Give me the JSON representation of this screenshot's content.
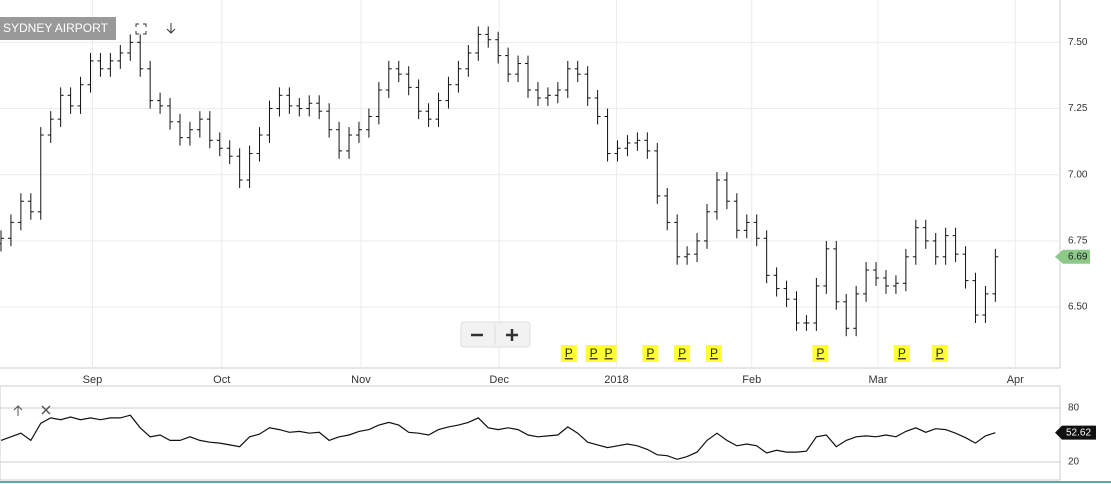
{
  "chart_data": [
    {
      "type": "ohlc",
      "title": "SYDNEY AIRPORT",
      "xlim": [
        -0.1,
        106.5
      ],
      "xticks": [
        {
          "value": 9.2,
          "label": "Sep"
        },
        {
          "value": 22.2,
          "label": "Oct"
        },
        {
          "value": 36.2,
          "label": "Nov"
        },
        {
          "value": 50.1,
          "label": "Dec"
        },
        {
          "value": 61.9,
          "label": "2018"
        },
        {
          "value": 75.5,
          "label": "Feb"
        },
        {
          "value": 88.2,
          "label": "Mar"
        },
        {
          "value": 102,
          "label": "Apr"
        }
      ],
      "ylim": [
        6.27,
        7.66
      ],
      "yticks": [
        {
          "value": 6.5,
          "label": "6.50"
        },
        {
          "value": 6.75,
          "label": "6.75"
        },
        {
          "value": 7,
          "label": "7.00"
        },
        {
          "value": 7.25,
          "label": "7.25"
        },
        {
          "value": 7.5,
          "label": "7.50"
        }
      ],
      "grid": true,
      "color": "#111111",
      "last_color": "#8cc888",
      "open": [
        6.74,
        6.76,
        6.82,
        6.9,
        6.86,
        7.15,
        7.21,
        7.3,
        7.26,
        7.34,
        7.43,
        7.4,
        7.43,
        7.46,
        7.5,
        7.4,
        7.28,
        7.26,
        7.2,
        7.14,
        7.17,
        7.21,
        7.13,
        7.1,
        7.07,
        6.98,
        7.08,
        7.15,
        7.25,
        7.3,
        7.26,
        7.25,
        7.27,
        7.24,
        7.17,
        7.09,
        7.15,
        7.17,
        7.22,
        7.32,
        7.4,
        7.38,
        7.33,
        7.24,
        7.21,
        7.28,
        7.34,
        7.4,
        7.46,
        7.53,
        7.51,
        7.45,
        7.38,
        7.42,
        7.32,
        7.29,
        7.3,
        7.32,
        7.4,
        7.38,
        7.29,
        7.22,
        7.08,
        7.1,
        7.12,
        7.13,
        7.09,
        6.92,
        6.82,
        6.69,
        6.7,
        6.75,
        6.86,
        6.98,
        6.9,
        6.79,
        6.82,
        6.76,
        6.62,
        6.57,
        6.53,
        6.44,
        6.44,
        6.58,
        6.72,
        6.52,
        6.42,
        6.55,
        6.64,
        6.61,
        6.58,
        6.59,
        6.69,
        6.8,
        6.75,
        6.69,
        6.77,
        6.7,
        6.6,
        6.47,
        6.55
      ],
      "high": [
        6.79,
        6.85,
        6.93,
        6.93,
        7.18,
        7.24,
        7.33,
        7.33,
        7.37,
        7.46,
        7.46,
        7.46,
        7.49,
        7.53,
        7.53,
        7.43,
        7.31,
        7.29,
        7.23,
        7.2,
        7.24,
        7.24,
        7.16,
        7.13,
        7.1,
        7.11,
        7.18,
        7.28,
        7.33,
        7.33,
        7.29,
        7.3,
        7.3,
        7.27,
        7.2,
        7.18,
        7.2,
        7.25,
        7.35,
        7.43,
        7.43,
        7.41,
        7.36,
        7.27,
        7.31,
        7.37,
        7.43,
        7.49,
        7.56,
        7.56,
        7.54,
        7.48,
        7.45,
        7.45,
        7.35,
        7.33,
        7.35,
        7.43,
        7.43,
        7.41,
        7.32,
        7.25,
        7.13,
        7.15,
        7.16,
        7.16,
        7.12,
        6.95,
        6.85,
        6.73,
        6.78,
        6.89,
        7.01,
        7.01,
        6.93,
        6.85,
        6.85,
        6.79,
        6.65,
        6.6,
        6.56,
        6.47,
        6.61,
        6.75,
        6.75,
        6.55,
        6.58,
        6.67,
        6.67,
        6.64,
        6.62,
        6.72,
        6.83,
        6.83,
        6.78,
        6.8,
        6.8,
        6.73,
        6.63,
        6.58,
        6.72
      ],
      "low": [
        6.71,
        6.73,
        6.79,
        6.83,
        6.83,
        7.12,
        7.18,
        7.23,
        7.23,
        7.31,
        7.37,
        7.37,
        7.4,
        7.43,
        7.37,
        7.25,
        7.23,
        7.17,
        7.11,
        7.11,
        7.14,
        7.1,
        7.07,
        7.04,
        6.95,
        6.95,
        7.05,
        7.12,
        7.22,
        7.23,
        7.22,
        7.22,
        7.21,
        7.14,
        7.06,
        7.06,
        7.12,
        7.14,
        7.19,
        7.29,
        7.35,
        7.3,
        7.21,
        7.18,
        7.18,
        7.25,
        7.31,
        7.37,
        7.43,
        7.48,
        7.42,
        7.35,
        7.35,
        7.29,
        7.26,
        7.26,
        7.27,
        7.29,
        7.35,
        7.26,
        7.19,
        7.05,
        7.05,
        7.07,
        7.09,
        7.06,
        6.89,
        6.79,
        6.66,
        6.66,
        6.67,
        6.72,
        6.83,
        6.87,
        6.76,
        6.76,
        6.73,
        6.59,
        6.54,
        6.5,
        6.41,
        6.41,
        6.41,
        6.55,
        6.49,
        6.39,
        6.39,
        6.52,
        6.58,
        6.55,
        6.55,
        6.56,
        6.66,
        6.72,
        6.66,
        6.66,
        6.67,
        6.57,
        6.44,
        6.44,
        6.52
      ],
      "close": [
        6.76,
        6.82,
        6.9,
        6.86,
        7.15,
        7.21,
        7.3,
        7.26,
        7.34,
        7.43,
        7.4,
        7.43,
        7.46,
        7.5,
        7.4,
        7.28,
        7.26,
        7.2,
        7.14,
        7.17,
        7.21,
        7.13,
        7.1,
        7.07,
        6.98,
        7.08,
        7.15,
        7.25,
        7.3,
        7.26,
        7.25,
        7.27,
        7.24,
        7.17,
        7.09,
        7.15,
        7.17,
        7.22,
        7.32,
        7.4,
        7.38,
        7.33,
        7.24,
        7.21,
        7.28,
        7.34,
        7.4,
        7.46,
        7.53,
        7.51,
        7.45,
        7.38,
        7.42,
        7.32,
        7.29,
        7.3,
        7.32,
        7.4,
        7.38,
        7.29,
        7.22,
        7.08,
        7.1,
        7.12,
        7.13,
        7.09,
        6.92,
        6.82,
        6.69,
        6.7,
        6.75,
        6.86,
        6.98,
        6.9,
        6.79,
        6.82,
        6.76,
        6.62,
        6.57,
        6.53,
        6.44,
        6.44,
        6.58,
        6.72,
        6.52,
        6.42,
        6.55,
        6.64,
        6.61,
        6.58,
        6.59,
        6.69,
        6.8,
        6.75,
        6.69,
        6.77,
        6.7,
        6.6,
        6.47,
        6.55,
        6.69
      ],
      "events": [
        {
          "label": "P",
          "x": 57
        },
        {
          "label": "P",
          "x": 59.5
        },
        {
          "label": "P",
          "x": 61
        },
        {
          "label": "P",
          "x": 65.2
        },
        {
          "label": "P",
          "x": 68.4
        },
        {
          "label": "P",
          "x": 71.6
        },
        {
          "label": "P",
          "x": 82.3
        },
        {
          "label": "P",
          "x": 90.5
        },
        {
          "label": "P",
          "x": 94.3
        }
      ],
      "event_color": "#ffff33"
    },
    {
      "type": "line",
      "color": "#111111",
      "last_color": "#111111",
      "ylim": [
        10,
        100
      ],
      "yticks": [
        80,
        20
      ],
      "values": [
        44,
        48,
        52,
        44,
        63,
        69,
        67,
        70,
        67,
        69,
        67,
        69,
        69,
        72,
        58,
        48,
        50,
        44,
        44,
        48,
        44,
        42,
        41,
        39,
        37,
        48,
        51,
        58,
        56,
        53,
        54,
        52,
        53,
        44,
        48,
        50,
        54,
        56,
        61,
        64,
        61,
        53,
        52,
        50,
        56,
        59,
        61,
        64,
        69,
        58,
        56,
        58,
        56,
        50,
        48,
        49,
        50,
        59,
        52,
        42,
        39,
        36,
        38,
        40,
        38,
        34,
        28,
        27,
        23,
        26,
        31,
        44,
        52,
        44,
        38,
        40,
        38,
        30,
        33,
        31,
        31,
        32,
        48,
        50,
        37,
        44,
        48,
        49,
        48,
        50,
        48,
        54,
        58,
        53,
        57,
        56,
        52,
        47,
        41,
        49,
        52.62
      ]
    }
  ]
}
